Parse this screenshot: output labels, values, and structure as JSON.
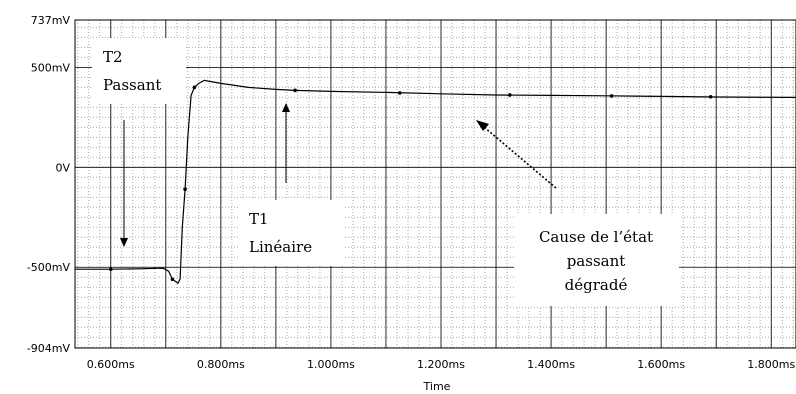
{
  "chart_data": {
    "type": "line",
    "xlabel": "Time",
    "ylabel": "",
    "xlim": [
      0.535,
      1.845
    ],
    "ylim": [
      -904,
      737
    ],
    "x_unit": "ms",
    "y_unit": "mV",
    "y_ticks": [
      "737mV",
      "500mV",
      "0V",
      "-500mV",
      "-904mV"
    ],
    "x_ticks": [
      "0.600ms",
      "0.800ms",
      "1.000ms",
      "1.200ms",
      "1.400ms",
      "1.600ms",
      "1.800ms"
    ],
    "grid": true,
    "series": [
      {
        "color": "#000000",
        "points": [
          [
            0.535,
            -510
          ],
          [
            0.6,
            -510
          ],
          [
            0.65,
            -508
          ],
          [
            0.695,
            -505
          ],
          [
            0.705,
            -520
          ],
          [
            0.712,
            -560
          ],
          [
            0.722,
            -580
          ],
          [
            0.726,
            -560
          ],
          [
            0.73,
            -300
          ],
          [
            0.735,
            -110
          ],
          [
            0.74,
            150
          ],
          [
            0.746,
            360
          ],
          [
            0.752,
            400
          ],
          [
            0.76,
            420
          ],
          [
            0.77,
            435
          ],
          [
            0.8,
            420
          ],
          [
            0.85,
            400
          ],
          [
            0.9,
            390
          ],
          [
            0.935,
            385
          ],
          [
            1.0,
            380
          ],
          [
            1.1,
            375
          ],
          [
            1.2,
            368
          ],
          [
            1.3,
            362
          ],
          [
            1.4,
            360
          ],
          [
            1.5,
            358
          ],
          [
            1.6,
            355
          ],
          [
            1.7,
            352
          ],
          [
            1.845,
            350
          ]
        ],
        "markers": [
          [
            0.6,
            -510
          ],
          [
            0.712,
            -560
          ],
          [
            0.735,
            -110
          ],
          [
            0.752,
            400
          ],
          [
            0.935,
            385
          ],
          [
            1.125,
            372
          ],
          [
            1.325,
            362
          ],
          [
            1.51,
            357
          ],
          [
            1.69,
            353
          ]
        ]
      }
    ],
    "annotations": [
      {
        "id": "t2",
        "lines": [
          "T2",
          "Passant"
        ]
      },
      {
        "id": "t1",
        "lines": [
          "T1",
          "Linéaire"
        ]
      },
      {
        "id": "cause",
        "lines": [
          "Cause de l’état",
          "passant",
          "dégradé"
        ]
      }
    ]
  }
}
